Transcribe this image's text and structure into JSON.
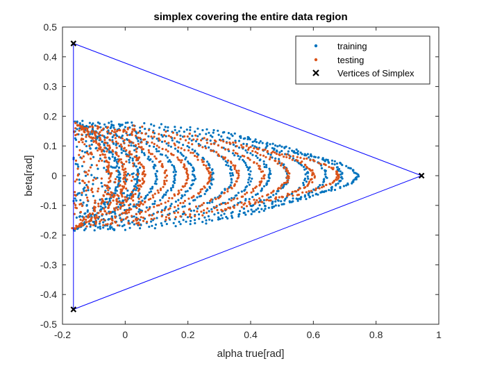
{
  "chart_data": {
    "type": "scatter",
    "title": "simplex covering the entire data region",
    "xlabel": "alpha true[rad]",
    "ylabel": "beta[rad]",
    "xlim": [
      -0.2,
      1
    ],
    "ylim": [
      -0.5,
      0.5
    ],
    "xticks": [
      -0.2,
      0,
      0.2,
      0.4,
      0.6,
      0.8,
      1
    ],
    "xtick_labels": [
      "-0.2",
      "0",
      "0.2",
      "0.4",
      "0.6",
      "0.8",
      "1"
    ],
    "yticks": [
      -0.5,
      -0.4,
      -0.3,
      -0.2,
      -0.1,
      0,
      0.1,
      0.2,
      0.3,
      0.4,
      0.5
    ],
    "ytick_labels": [
      "-0.5",
      "-0.4",
      "-0.3",
      "-0.2",
      "-0.1",
      "0",
      "0.1",
      "0.2",
      "0.3",
      "0.4",
      "0.5"
    ],
    "grid": false,
    "legend_position": "top-right",
    "series": [
      {
        "name": "training",
        "marker": "dot",
        "color": "#0072BD",
        "arcs": [
          {
            "x_left": -0.165,
            "x_tip": -0.02,
            "half_height": 0.185
          },
          {
            "x_left": -0.165,
            "x_tip": 0.04,
            "half_height": 0.185
          },
          {
            "x_left": -0.14,
            "x_tip": 0.1,
            "half_height": 0.185
          },
          {
            "x_left": -0.1,
            "x_tip": 0.16,
            "half_height": 0.185
          },
          {
            "x_left": -0.05,
            "x_tip": 0.22,
            "half_height": 0.185
          },
          {
            "x_left": 0.0,
            "x_tip": 0.28,
            "half_height": 0.18
          },
          {
            "x_left": 0.05,
            "x_tip": 0.34,
            "half_height": 0.18
          },
          {
            "x_left": 0.1,
            "x_tip": 0.4,
            "half_height": 0.175
          },
          {
            "x_left": 0.15,
            "x_tip": 0.46,
            "half_height": 0.17
          },
          {
            "x_left": 0.2,
            "x_tip": 0.52,
            "half_height": 0.165
          },
          {
            "x_left": 0.25,
            "x_tip": 0.58,
            "half_height": 0.16
          },
          {
            "x_left": 0.3,
            "x_tip": 0.64,
            "half_height": 0.15
          },
          {
            "x_left": 0.35,
            "x_tip": 0.69,
            "half_height": 0.13
          },
          {
            "x_left": 0.4,
            "x_tip": 0.74,
            "half_height": 0.1
          }
        ],
        "filled_band": {
          "x_range": [
            -0.165,
            0.05
          ],
          "y_range": [
            -0.185,
            0.18
          ]
        }
      },
      {
        "name": "testing",
        "marker": "dot",
        "color": "#D95319",
        "arcs": [
          {
            "x_left": -0.165,
            "x_tip": -0.05,
            "half_height": 0.18
          },
          {
            "x_left": -0.165,
            "x_tip": 0.0,
            "half_height": 0.18
          },
          {
            "x_left": -0.165,
            "x_tip": 0.06,
            "half_height": 0.175
          },
          {
            "x_left": -0.12,
            "x_tip": 0.13,
            "half_height": 0.17
          },
          {
            "x_left": -0.06,
            "x_tip": 0.2,
            "half_height": 0.165
          },
          {
            "x_left": 0.0,
            "x_tip": 0.27,
            "half_height": 0.16
          },
          {
            "x_left": 0.06,
            "x_tip": 0.36,
            "half_height": 0.155
          },
          {
            "x_left": 0.12,
            "x_tip": 0.44,
            "half_height": 0.15
          },
          {
            "x_left": 0.2,
            "x_tip": 0.52,
            "half_height": 0.14
          },
          {
            "x_left": 0.3,
            "x_tip": 0.6,
            "half_height": 0.12
          },
          {
            "x_left": 0.38,
            "x_tip": 0.68,
            "half_height": 0.095
          }
        ],
        "filled_band": {
          "x_range": [
            -0.165,
            0.06
          ],
          "y_range": [
            -0.17,
            0.17
          ]
        }
      },
      {
        "name": "Vertices of Simplex",
        "marker": "x",
        "color": "#000000",
        "points": [
          {
            "x": -0.165,
            "y": 0.445
          },
          {
            "x": -0.165,
            "y": -0.45
          },
          {
            "x": 0.945,
            "y": 0.0
          }
        ]
      }
    ],
    "simplex_edge_color": "#0000FF"
  }
}
